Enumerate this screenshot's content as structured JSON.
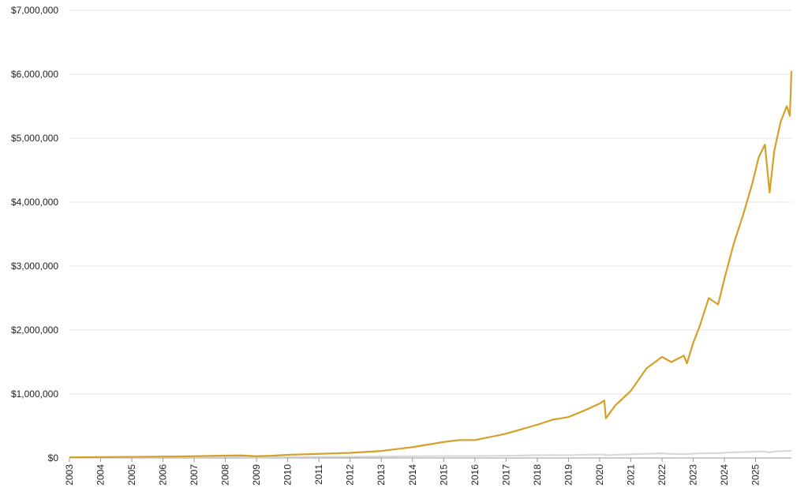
{
  "chart_data": {
    "type": "line",
    "x": [
      2003,
      2004,
      2005,
      2006,
      2007,
      2008,
      2008.5,
      2009,
      2009.5,
      2010,
      2011,
      2012,
      2013,
      2014,
      2015,
      2015.5,
      2016,
      2016.5,
      2017,
      2017.5,
      2018,
      2018.5,
      2019,
      2019.5,
      2020,
      2020.15,
      2020.2,
      2020.5,
      2021,
      2021.5,
      2022,
      2022.3,
      2022.7,
      2022.8,
      2023,
      2023.2,
      2023.5,
      2023.8,
      2024,
      2024.3,
      2024.6,
      2024.9,
      2025.1,
      2025.3,
      2025.45,
      2025.6,
      2025.8,
      2026,
      2026.1,
      2026.15
    ],
    "series": [
      {
        "color": "#d4a02a",
        "values": [
          10000,
          14000,
          18000,
          22000,
          28000,
          38000,
          40000,
          28000,
          35000,
          50000,
          65000,
          80000,
          110000,
          170000,
          250000,
          280000,
          280000,
          330000,
          380000,
          450000,
          520000,
          600000,
          640000,
          740000,
          850000,
          900000,
          620000,
          820000,
          1050000,
          1400000,
          1580000,
          1500000,
          1600000,
          1480000,
          1800000,
          2050000,
          2500000,
          2400000,
          2800000,
          3350000,
          3800000,
          4300000,
          4700000,
          4900000,
          4150000,
          4800000,
          5250000,
          5500000,
          5350000,
          6050000
        ]
      },
      {
        "color": "#d8d8d8",
        "values": [
          10000,
          11000,
          12000,
          13000,
          15000,
          16000,
          15000,
          11000,
          13000,
          16000,
          18000,
          19000,
          23000,
          27000,
          30000,
          31000,
          30000,
          33000,
          36000,
          39000,
          43000,
          45000,
          44000,
          50000,
          54000,
          55000,
          42000,
          50000,
          58000,
          66000,
          73000,
          64000,
          60000,
          62000,
          68000,
          72000,
          76000,
          74000,
          82000,
          88000,
          92000,
          97000,
          102000,
          100000,
          88000,
          100000,
          106000,
          110000,
          112000,
          115000
        ]
      }
    ],
    "xlim": [
      2003,
      2026.15
    ],
    "xticks": [
      2003,
      2004,
      2005,
      2006,
      2007,
      2008,
      2009,
      2010,
      2011,
      2012,
      2013,
      2014,
      2015,
      2016,
      2017,
      2018,
      2019,
      2020,
      2021,
      2022,
      2023,
      2024,
      2025
    ],
    "ylim": [
      0,
      7000000
    ],
    "yticks": [
      {
        "value": 0,
        "label": "$0"
      },
      {
        "value": 1000000,
        "label": "$1,000,000"
      },
      {
        "value": 2000000,
        "label": "$2,000,000"
      },
      {
        "value": 3000000,
        "label": "$3,000,000"
      },
      {
        "value": 4000000,
        "label": "$4,000,000"
      },
      {
        "value": 5000000,
        "label": "$5,000,000"
      },
      {
        "value": 6000000,
        "label": "$6,000,000"
      },
      {
        "value": 7000000,
        "label": "$7,000,000"
      }
    ],
    "grid": true
  }
}
